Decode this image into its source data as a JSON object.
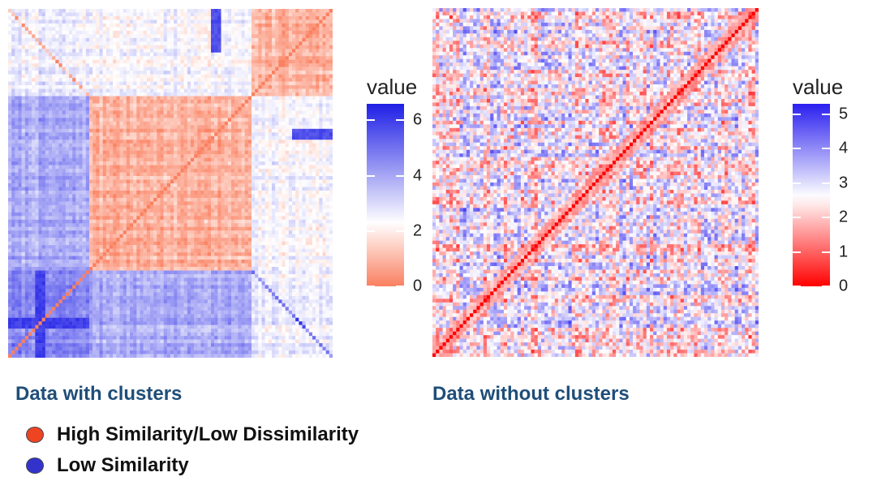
{
  "chart_data": [
    {
      "type": "heatmap",
      "title": "Data with clusters",
      "legend_title": "value",
      "scale": {
        "min": 0,
        "mid": 2.3,
        "max": 6.6,
        "low_color": "#fa8060",
        "mid_color": "#ffffff",
        "high_color": "#1f1fe6"
      },
      "ticks": [
        0,
        2,
        4,
        6
      ],
      "diagonal_value": 0,
      "clusters": [
        {
          "size": 24,
          "within": 4.6
        },
        {
          "size": 48,
          "within": 0.9
        },
        {
          "size": 24,
          "within": 0.9
        }
      ],
      "between": [
        [
          4.6,
          3.9,
          2.6
        ],
        [
          3.9,
          0.9,
          2.4
        ],
        [
          2.6,
          2.4,
          0.9
        ]
      ],
      "special": [
        {
          "rows": [
            8,
            11
          ],
          "cols": [
            0,
            24
          ],
          "value": 6.3
        },
        {
          "rows": [
            84,
            96
          ],
          "cols": [
            60,
            63
          ],
          "value": 6.0
        }
      ]
    },
    {
      "type": "heatmap",
      "title": "Data without clusters",
      "legend_title": "value",
      "scale": {
        "min": 0,
        "mid": 2.6,
        "max": 5.3,
        "low_color": "#ff0000",
        "mid_color": "#ffffff",
        "high_color": "#2a1ff0"
      },
      "ticks": [
        0,
        1,
        2,
        3,
        4,
        5
      ],
      "diagonal_value": 0,
      "note": "random dissimilarities; diagonal runs bottom-left to top-right"
    }
  ],
  "legend_key": [
    {
      "label": "High Similarity/Low Dissimilarity",
      "color": "#ee4422"
    },
    {
      "label": "Low Similarity",
      "color": "#3333cc"
    }
  ],
  "colors": {
    "caption": "#1f4e79"
  }
}
